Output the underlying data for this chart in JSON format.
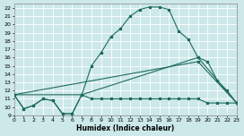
{
  "xlabel": "Humidex (Indice chaleur)",
  "bg_color": "#cce8e8",
  "line_color": "#1e6b5e",
  "grid_color": "#aed4d4",
  "xlim": [
    0,
    23
  ],
  "ylim": [
    9,
    22.5
  ],
  "xticks": [
    0,
    1,
    2,
    3,
    4,
    5,
    6,
    7,
    8,
    9,
    10,
    11,
    12,
    13,
    14,
    15,
    16,
    17,
    18,
    19,
    20,
    21,
    22,
    23
  ],
  "yticks": [
    9,
    10,
    11,
    12,
    13,
    14,
    15,
    16,
    17,
    18,
    19,
    20,
    21,
    22
  ],
  "curve1_x": [
    0,
    1,
    2,
    3,
    4,
    5,
    6,
    7,
    8,
    9,
    10,
    11,
    12,
    13,
    14,
    15,
    16,
    17,
    18,
    19,
    20,
    21,
    22,
    23
  ],
  "curve1_y": [
    11.5,
    9.8,
    10.2,
    11.0,
    10.8,
    9.2,
    9.2,
    11.5,
    15.0,
    16.6,
    18.5,
    19.5,
    21.0,
    21.8,
    22.1,
    22.1,
    21.8,
    19.2,
    18.2,
    16.0,
    15.5,
    13.2,
    12.0,
    10.5
  ],
  "curve2_x": [
    0,
    1,
    2,
    3,
    4,
    5,
    6,
    7,
    8,
    9,
    10,
    11,
    12,
    13,
    14,
    15,
    16,
    17,
    18,
    19,
    20,
    21,
    22,
    23
  ],
  "curve2_y": [
    11.5,
    9.8,
    10.2,
    11.0,
    10.8,
    9.2,
    9.2,
    11.5,
    11.0,
    11.0,
    11.0,
    11.0,
    11.0,
    11.0,
    11.0,
    11.0,
    11.0,
    11.0,
    11.0,
    11.0,
    10.5,
    10.5,
    10.5,
    10.5
  ],
  "curve3_x": [
    0,
    7,
    19,
    23
  ],
  "curve3_y": [
    11.5,
    11.5,
    16.0,
    10.5
  ],
  "curve4_x": [
    0,
    19,
    23
  ],
  "curve4_y": [
    11.5,
    15.5,
    10.5
  ]
}
